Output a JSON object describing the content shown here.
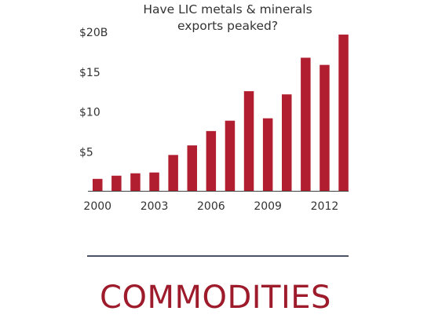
{
  "chart_title": {
    "line1": "Have LIC metals & minerals",
    "line2": "exports peaked?"
  },
  "section_label": "COMMODITIES",
  "colors": {
    "bar": "#b01e2f",
    "axis": "#444444",
    "divider": "#4a5563",
    "label": "#9e1b2c"
  },
  "chart_data": {
    "type": "bar",
    "title": "Have LIC metals & minerals exports peaked?",
    "xlabel": "",
    "ylabel": "",
    "categories": [
      "2000",
      "2001",
      "2002",
      "2003",
      "2004",
      "2005",
      "2006",
      "2007",
      "2008",
      "2009",
      "2010",
      "2011",
      "2012",
      "2013"
    ],
    "values": [
      1.5,
      1.9,
      2.2,
      2.3,
      4.5,
      5.7,
      7.5,
      8.8,
      12.5,
      9.1,
      12.1,
      16.7,
      15.8,
      19.6
    ],
    "ylim": [
      0,
      20
    ],
    "y_ticks": [
      {
        "value": 5,
        "label": "$5"
      },
      {
        "value": 10,
        "label": "$10"
      },
      {
        "value": 15,
        "label": "$15"
      },
      {
        "value": 20,
        "label": "$20B"
      }
    ],
    "x_tick_labels": [
      {
        "category": "2000",
        "label": "2000"
      },
      {
        "category": "2003",
        "label": "2003"
      },
      {
        "category": "2006",
        "label": "2006"
      },
      {
        "category": "2009",
        "label": "2009"
      },
      {
        "category": "2012",
        "label": "2012"
      }
    ],
    "grid": false,
    "legend": "none"
  }
}
